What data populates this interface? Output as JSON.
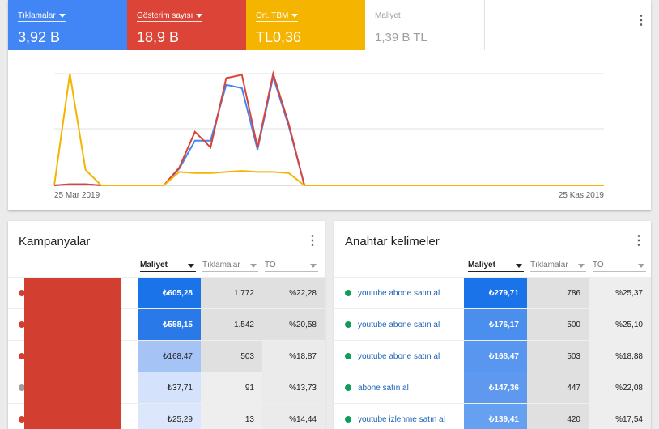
{
  "overview": {
    "metrics": [
      {
        "label": "Tıklamalar",
        "value": "3,92 B"
      },
      {
        "label": "Gösterim sayısı",
        "value": "18,9 B"
      },
      {
        "label": "Ort. TBM",
        "value": "TL0,36"
      },
      {
        "label": "Maliyet",
        "value": "1,39 B TL"
      }
    ],
    "more_icon": "more-vert-icon"
  },
  "chart_data": {
    "type": "line",
    "x_start_label": "25 Mar 2019",
    "x_end_label": "25 Kas 2019",
    "x_index_count": 19,
    "series": [
      {
        "name": "Tıklamalar",
        "color": "#4285f4",
        "values": [
          0.0,
          0.01,
          0.01,
          0.0,
          0.0,
          0.0,
          0.0,
          0.0,
          0.15,
          0.4,
          0.4,
          0.9,
          0.87,
          0.32,
          0.97,
          0.53,
          0.0,
          0.0,
          0.0
        ]
      },
      {
        "name": "Gösterim sayısı",
        "color": "#db4437",
        "values": [
          0.0,
          0.01,
          0.01,
          0.0,
          0.0,
          0.0,
          0.0,
          0.0,
          0.16,
          0.48,
          0.34,
          0.96,
          0.99,
          0.34,
          1.0,
          0.55,
          0.0,
          0.0,
          0.0
        ]
      },
      {
        "name": "Ort. TBM",
        "color": "#f4b400",
        "values": [
          0.0,
          1.0,
          0.14,
          0.0,
          0.0,
          0.0,
          0.0,
          0.0,
          0.12,
          0.11,
          0.11,
          0.12,
          0.13,
          0.12,
          0.12,
          0.11,
          0.0,
          0.0,
          0.0
        ]
      }
    ],
    "grid": true
  },
  "campaigns": {
    "title": "Kampanyalar",
    "columns": [
      "Maliyet",
      "Tıklamalar",
      "TO"
    ],
    "rows": [
      {
        "status": "removed",
        "cost": "₺605,28",
        "clicks": "1.772",
        "ctr": "%22,28",
        "shade": "#1a73e8"
      },
      {
        "status": "removed",
        "cost": "₺558,15",
        "clicks": "1.542",
        "ctr": "%20,58",
        "shade": "#2979e9"
      },
      {
        "status": "removed",
        "cost": "₺168,47",
        "clicks": "503",
        "ctr": "%18,87",
        "shade": "#a6c3f5"
      },
      {
        "status": "paused",
        "cost": "₺37,71",
        "clicks": "91",
        "ctr": "%13,73",
        "shade": "#d4e2fb"
      },
      {
        "status": "removed",
        "cost": "₺25,29",
        "clicks": "13",
        "ctr": "%14,44",
        "shade": "#dce7fc"
      }
    ]
  },
  "keywords": {
    "title": "Anahtar kelimeler",
    "columns": [
      "Maliyet",
      "Tıklamalar",
      "TO"
    ],
    "rows": [
      {
        "keyword": "youtube abone satın al",
        "cost": "₺279,71",
        "clicks": "786",
        "ctr": "%25,37",
        "shade": "#1a73e8"
      },
      {
        "keyword": "youtube abone satın al",
        "cost": "₺176,17",
        "clicks": "500",
        "ctr": "%25,10",
        "shade": "#4b8fee"
      },
      {
        "keyword": "youtube abone satın al",
        "cost": "₺168,47",
        "clicks": "503",
        "ctr": "%18,88",
        "shade": "#5896ef"
      },
      {
        "keyword": "abone satın al",
        "cost": "₺147,36",
        "clicks": "447",
        "ctr": "%22,08",
        "shade": "#5e99ef"
      },
      {
        "keyword": "youtube izlenme satın al",
        "cost": "₺139,41",
        "clicks": "420",
        "ctr": "%17,54",
        "shade": "#66a0f0"
      }
    ]
  }
}
